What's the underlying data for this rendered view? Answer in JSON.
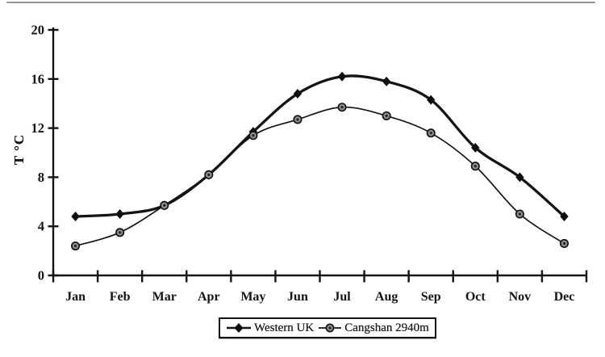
{
  "colors": {
    "ink": "#141414",
    "paper": "#ffffff",
    "circle_marker_fill": "#8f8f8f",
    "circle_marker_core": "#222222"
  },
  "chart_data": {
    "type": "line",
    "title": "",
    "xlabel": "",
    "ylabel": "T °C",
    "categories": [
      "Jan",
      "Feb",
      "Mar",
      "Apr",
      "May",
      "Jun",
      "Jul",
      "Aug",
      "Sep",
      "Oct",
      "Nov",
      "Dec"
    ],
    "y_ticks": [
      0,
      4,
      8,
      12,
      16,
      20
    ],
    "ylim": [
      0,
      20
    ],
    "grid": false,
    "legend_position": "bottom-center",
    "series": [
      {
        "name": "Western UK",
        "marker": "diamond",
        "line_style": "thick-smooth",
        "values": [
          4.8,
          5.0,
          5.7,
          8.2,
          11.7,
          14.8,
          16.2,
          15.8,
          14.3,
          10.4,
          8.0,
          4.8
        ]
      },
      {
        "name": "Cangshan 2940m",
        "marker": "circle",
        "line_style": "thin-smooth",
        "values": [
          2.4,
          3.5,
          5.7,
          8.2,
          11.4,
          12.7,
          13.7,
          13.0,
          11.6,
          8.9,
          5.0,
          2.6
        ]
      }
    ]
  }
}
